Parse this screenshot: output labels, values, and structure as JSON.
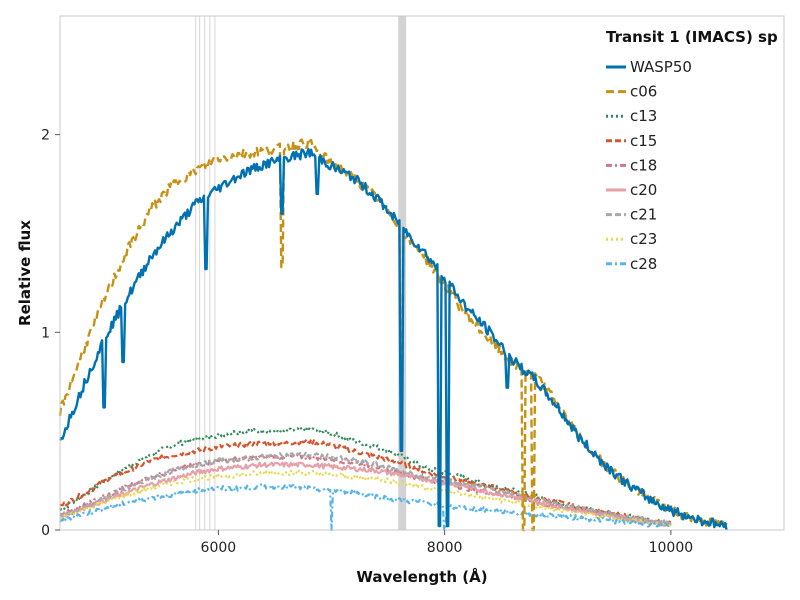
{
  "chart_data": {
    "type": "line",
    "title": "",
    "xlabel": "Wavelength (Å)",
    "ylabel": "Relative flux",
    "xlim": [
      4600,
      11000
    ],
    "ylim": [
      0,
      2.6
    ],
    "xticks": [
      6000,
      8000,
      10000
    ],
    "yticks": [
      0,
      1,
      2
    ],
    "grid": false,
    "legend": {
      "title": "Transit 1 (IMACS) sp",
      "position": "top-right"
    },
    "masked_regions": [
      {
        "x0": 5795,
        "x1": 5800
      },
      {
        "x0": 5830,
        "x1": 5835
      },
      {
        "x0": 5875,
        "x1": 5880
      },
      {
        "x0": 5920,
        "x1": 5925
      },
      {
        "x0": 5965,
        "x1": 5970
      },
      {
        "x0": 7590,
        "x1": 7660
      }
    ],
    "series": [
      {
        "name": "WASP50",
        "color": "#0072b2",
        "dash": "solid",
        "x": [
          4600,
          4800,
          5000,
          5200,
          5400,
          5600,
          5800,
          6000,
          6200,
          6400,
          6600,
          6800,
          6900,
          7000,
          7200,
          7400,
          7550,
          7700,
          7800,
          8000,
          8200,
          8400,
          8600,
          8800,
          9000,
          9200,
          9400,
          9600,
          9800,
          10000,
          10200,
          10400,
          10500
        ],
        "y": [
          0.45,
          0.72,
          0.98,
          1.18,
          1.38,
          1.52,
          1.65,
          1.73,
          1.8,
          1.85,
          1.88,
          1.91,
          1.88,
          1.84,
          1.78,
          1.68,
          1.58,
          1.48,
          1.42,
          1.28,
          1.12,
          1.0,
          0.86,
          0.76,
          0.62,
          0.46,
          0.34,
          0.24,
          0.16,
          0.1,
          0.06,
          0.03,
          0.02
        ],
        "dips": [
          {
            "x": 4990,
            "y": 0.62
          },
          {
            "x": 5160,
            "y": 0.85
          },
          {
            "x": 5890,
            "y": 1.32
          },
          {
            "x": 6562,
            "y": 1.6
          },
          {
            "x": 6870,
            "y": 1.7
          },
          {
            "x": 7620,
            "y": 0.4
          },
          {
            "x": 7950,
            "y": 0.02
          },
          {
            "x": 8030,
            "y": 0.02
          },
          {
            "x": 8550,
            "y": 0.72
          }
        ]
      },
      {
        "name": "c06",
        "color": "#c69214",
        "dash": "8,4",
        "x": [
          4600,
          4800,
          5000,
          5200,
          5400,
          5600,
          5800,
          6000,
          6200,
          6400,
          6600,
          6800,
          6900,
          7000,
          7200,
          7400,
          7550,
          7700,
          7800,
          8000,
          8200,
          8400,
          8600,
          8800,
          9000,
          9200,
          9400,
          9600,
          9800,
          10000,
          10200,
          10400,
          10500
        ],
        "y": [
          0.6,
          0.9,
          1.18,
          1.42,
          1.62,
          1.75,
          1.82,
          1.88,
          1.9,
          1.92,
          1.94,
          1.96,
          1.9,
          1.86,
          1.78,
          1.68,
          1.58,
          1.46,
          1.4,
          1.24,
          1.08,
          0.96,
          0.84,
          0.78,
          0.64,
          0.46,
          0.34,
          0.24,
          0.16,
          0.1,
          0.06,
          0.03,
          0.02
        ],
        "dips": [
          {
            "x": 6562,
            "y": 1.33
          },
          {
            "x": 7620,
            "y": 0.6
          },
          {
            "x": 8700,
            "y": 0.0
          },
          {
            "x": 8780,
            "y": 0.0
          }
        ]
      },
      {
        "name": "c13",
        "color": "#2e8b57",
        "dash": "2,3",
        "x": [
          4600,
          4800,
          5000,
          5200,
          5400,
          5600,
          5800,
          6000,
          6200,
          6400,
          6600,
          6800,
          7000,
          7200,
          7400,
          7600,
          7800,
          8000,
          8200,
          8400,
          8600,
          8800,
          9000,
          9200,
          9400,
          9600,
          9800,
          10000
        ],
        "y": [
          0.1,
          0.17,
          0.25,
          0.32,
          0.38,
          0.43,
          0.46,
          0.48,
          0.5,
          0.5,
          0.5,
          0.51,
          0.49,
          0.45,
          0.42,
          0.38,
          0.32,
          0.29,
          0.26,
          0.23,
          0.2,
          0.17,
          0.14,
          0.11,
          0.09,
          0.07,
          0.05,
          0.03
        ]
      },
      {
        "name": "c15",
        "color": "#d5552e",
        "dash": "6,3",
        "x": [
          4600,
          4800,
          5000,
          5200,
          5400,
          5600,
          5800,
          6000,
          6200,
          6400,
          6600,
          6800,
          7000,
          7200,
          7400,
          7600,
          7800,
          8000,
          8200,
          8400,
          8600,
          8800,
          9000,
          9200,
          9400,
          9600,
          9800,
          10000
        ],
        "y": [
          0.12,
          0.18,
          0.25,
          0.3,
          0.35,
          0.38,
          0.4,
          0.42,
          0.43,
          0.44,
          0.44,
          0.45,
          0.43,
          0.4,
          0.37,
          0.34,
          0.3,
          0.27,
          0.24,
          0.22,
          0.19,
          0.16,
          0.14,
          0.11,
          0.09,
          0.07,
          0.05,
          0.03
        ]
      },
      {
        "name": "c18",
        "color": "#cc7a8a",
        "dash": "6,3,2,3",
        "x": [
          4600,
          4800,
          5000,
          5200,
          5400,
          5600,
          5800,
          6000,
          6200,
          6400,
          6600,
          6800,
          7000,
          7200,
          7400,
          7600,
          7800,
          8000,
          8200,
          8400,
          8600,
          8800,
          9000,
          9200,
          9400,
          9600,
          9800,
          10000
        ],
        "y": [
          0.08,
          0.12,
          0.17,
          0.22,
          0.27,
          0.3,
          0.33,
          0.35,
          0.36,
          0.37,
          0.37,
          0.37,
          0.36,
          0.34,
          0.32,
          0.29,
          0.26,
          0.24,
          0.21,
          0.19,
          0.17,
          0.14,
          0.12,
          0.1,
          0.08,
          0.06,
          0.04,
          0.03
        ]
      },
      {
        "name": "c20",
        "color": "#e8a0a8",
        "dash": "solid",
        "x": [
          4600,
          4800,
          5000,
          5200,
          5400,
          5600,
          5800,
          6000,
          6200,
          6400,
          6600,
          6800,
          7000,
          7200,
          7400,
          7600,
          7800,
          8000,
          8200,
          8400,
          8600,
          8800,
          9000,
          9200,
          9400,
          9600,
          9800,
          10000
        ],
        "y": [
          0.07,
          0.11,
          0.15,
          0.19,
          0.23,
          0.26,
          0.29,
          0.31,
          0.32,
          0.33,
          0.33,
          0.33,
          0.32,
          0.31,
          0.3,
          0.28,
          0.26,
          0.24,
          0.22,
          0.19,
          0.17,
          0.14,
          0.12,
          0.1,
          0.08,
          0.06,
          0.04,
          0.03
        ]
      },
      {
        "name": "c21",
        "color": "#a8a8a8",
        "dash": "6,3",
        "x": [
          4600,
          4800,
          5000,
          5200,
          5400,
          5600,
          5800,
          6000,
          6200,
          6400,
          6600,
          6800,
          7000,
          7200,
          7400,
          7600,
          7800,
          8000,
          8200,
          8400,
          8600,
          8800,
          9000,
          9200,
          9400,
          9600,
          9800,
          10000
        ],
        "y": [
          0.07,
          0.11,
          0.16,
          0.21,
          0.26,
          0.3,
          0.33,
          0.35,
          0.36,
          0.37,
          0.38,
          0.38,
          0.37,
          0.35,
          0.33,
          0.3,
          0.27,
          0.25,
          0.23,
          0.21,
          0.18,
          0.16,
          0.13,
          0.11,
          0.09,
          0.07,
          0.05,
          0.03
        ]
      },
      {
        "name": "c23",
        "color": "#e8d84a",
        "dash": "2,3",
        "x": [
          4600,
          4800,
          5000,
          5200,
          5400,
          5600,
          5800,
          6000,
          6200,
          6400,
          6600,
          6800,
          7000,
          7200,
          7400,
          7600,
          7800,
          8000,
          8200,
          8400,
          8600,
          8800,
          9000,
          9200,
          9400,
          9600,
          9800,
          10000
        ],
        "y": [
          0.06,
          0.1,
          0.14,
          0.18,
          0.21,
          0.24,
          0.26,
          0.27,
          0.28,
          0.29,
          0.29,
          0.29,
          0.28,
          0.27,
          0.26,
          0.24,
          0.22,
          0.2,
          0.18,
          0.16,
          0.14,
          0.12,
          0.1,
          0.08,
          0.07,
          0.05,
          0.04,
          0.02
        ]
      },
      {
        "name": "c28",
        "color": "#56b4e9",
        "dash": "6,3,2,3",
        "x": [
          4600,
          4800,
          5000,
          5200,
          5400,
          5600,
          5800,
          6000,
          6200,
          6400,
          6600,
          6800,
          7000,
          7200,
          7400,
          7600,
          7800,
          8000,
          8200,
          8400,
          8600,
          8800,
          9000,
          9200,
          9400,
          9600,
          9800,
          10000
        ],
        "y": [
          0.05,
          0.08,
          0.11,
          0.14,
          0.16,
          0.18,
          0.2,
          0.21,
          0.21,
          0.22,
          0.22,
          0.21,
          0.2,
          0.19,
          0.17,
          0.15,
          0.14,
          0.12,
          0.11,
          0.1,
          0.09,
          0.08,
          0.07,
          0.06,
          0.05,
          0.04,
          0.03,
          0.02
        ],
        "dips": [
          {
            "x": 7000,
            "y": 0.0
          },
          {
            "x": 8000,
            "y": 0.0
          }
        ]
      }
    ]
  }
}
